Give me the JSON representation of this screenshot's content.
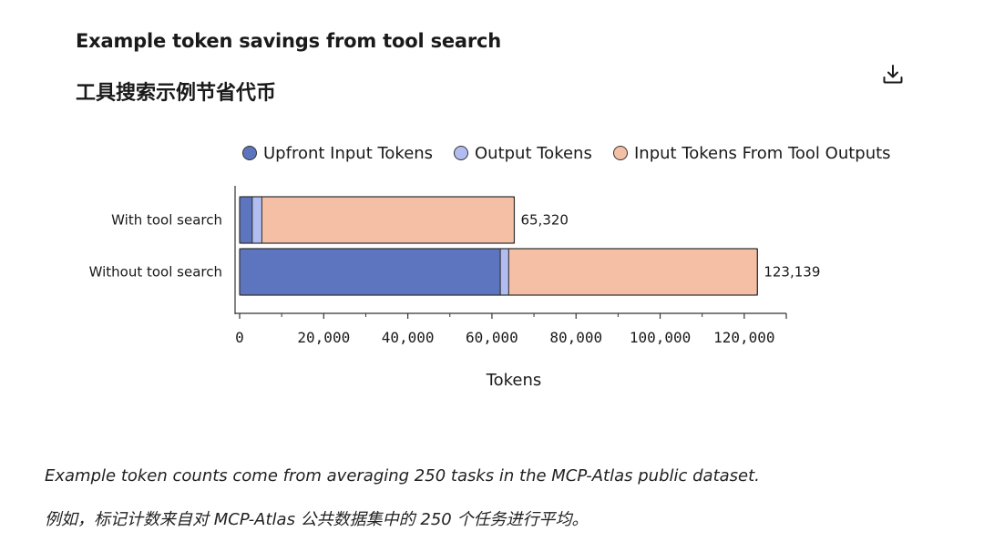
{
  "header": {
    "title_en": "Example token savings from tool search",
    "title_zh": "工具搜索示例节省代币",
    "download_icon": "download-icon"
  },
  "chart_data": {
    "type": "bar",
    "orientation": "horizontal",
    "stacked": true,
    "categories": [
      "With tool search",
      "Without tool search"
    ],
    "series": [
      {
        "name": "Upfront Input Tokens",
        "color": "#5d74bf",
        "values": [
          3000,
          62000
        ]
      },
      {
        "name": "Output Tokens",
        "color": "#b1bdf0",
        "values": [
          2300,
          2000
        ]
      },
      {
        "name": "Input Tokens From Tool Outputs",
        "color": "#f4bfa5",
        "values": [
          60020,
          59139
        ]
      }
    ],
    "totals": [
      65320,
      123139
    ],
    "total_labels": [
      "65,320",
      "123,139"
    ],
    "xlabel": "Tokens",
    "xlim": [
      0,
      130000
    ],
    "xticks": [
      0,
      20000,
      40000,
      60000,
      80000,
      100000,
      120000
    ],
    "xtick_labels": [
      "0",
      "20,000",
      "40,000",
      "60,000",
      "80,000",
      "100,000",
      "120,000"
    ],
    "legend_position": "top",
    "grid": false
  },
  "caption": {
    "en": "Example token counts come from averaging 250 tasks in the MCP-Atlas public dataset.",
    "zh": "例如，标记计数来自对 MCP-Atlas 公共数据集中的 250 个任务进行平均。"
  }
}
